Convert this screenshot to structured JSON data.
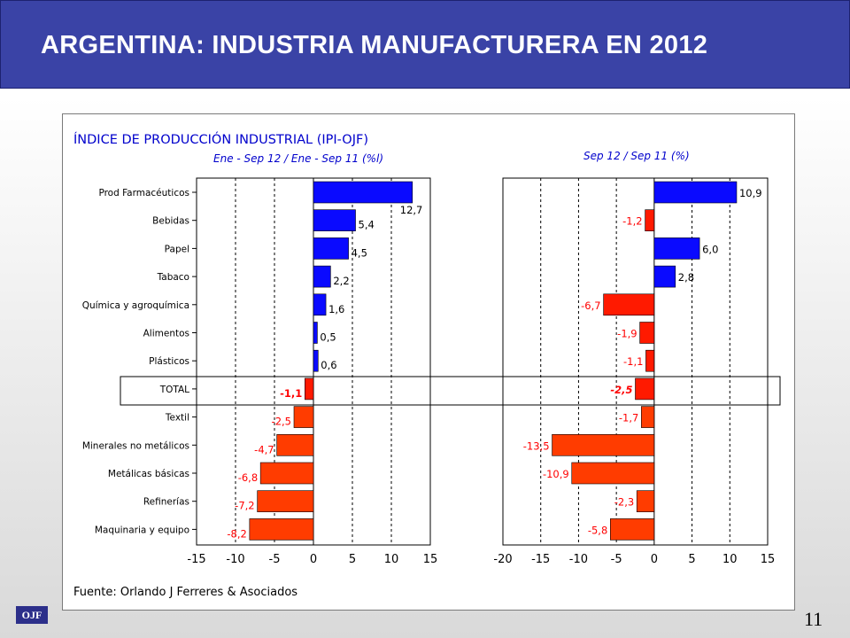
{
  "slide": {
    "title": "ARGENTINA: INDUSTRIA MANUFACTURERA EN 2012",
    "page_number": "11",
    "logo_text": "OJF"
  },
  "panel": {
    "header": "ÍNDICE DE PRODUCCIÓN INDUSTRIAL (IPI-OJF)",
    "source": "Fuente: Orlando J Ferreres & Asociados"
  },
  "colors": {
    "positive": "#0a0aff",
    "negative": "#ff1a00",
    "negative_orange": "#ff3c00",
    "label_negative": "#ff0000",
    "title_bar": "#3a43a6"
  },
  "chart_data": [
    {
      "type": "bar",
      "orientation": "horizontal",
      "subtitle": "Ene - Sep 12 / Ene - Sep 11 (%l)",
      "categories": [
        "Prod Farmacéuticos",
        "Bebidas",
        "Papel",
        "Tabaco",
        "Química  y  agroquímica",
        "Alimentos",
        "Plásticos",
        "TOTAL",
        "Textil",
        "Minerales no metálicos",
        "Metálicas básicas",
        "Refinerías",
        "Maquinaria y equipo"
      ],
      "values": [
        12.7,
        5.4,
        4.5,
        2.2,
        1.6,
        0.5,
        0.6,
        -1.1,
        -2.5,
        -4.7,
        -6.8,
        -7.2,
        -8.2
      ],
      "value_labels": [
        "12,7",
        "5,4",
        "4,5",
        "2,2",
        "1,6",
        "0,5",
        "0,6",
        "-1,1",
        "-2,5",
        "-4,7",
        "-6,8",
        "-7,2",
        "-8,2"
      ],
      "xlim": [
        -15,
        15
      ],
      "ticks": [
        -15,
        -10,
        -5,
        0,
        5,
        10,
        15
      ],
      "highlight_category": "TOTAL",
      "grid": "vertical dashed"
    },
    {
      "type": "bar",
      "orientation": "horizontal",
      "subtitle": "Sep 12 / Sep 11 (%)",
      "categories": [
        "Prod Farmacéuticos",
        "Bebidas",
        "Papel",
        "Tabaco",
        "Química  y  agroquímica",
        "Alimentos",
        "Plásticos",
        "TOTAL",
        "Textil",
        "Minerales no metálicos",
        "Metálicas básicas",
        "Refinerías",
        "Maquinaria y equipo"
      ],
      "values": [
        10.9,
        -1.2,
        6.0,
        2.8,
        -6.7,
        -1.9,
        -1.1,
        -2.5,
        -1.7,
        -13.5,
        -10.9,
        -2.3,
        -5.8
      ],
      "value_labels": [
        "10,9",
        "-1,2",
        "6,0",
        "2,8",
        "-6,7",
        "-1,9",
        "-1,1",
        "-2,5",
        "-1,7",
        "-13,5",
        "-10,9",
        "-2,3",
        "-5,8"
      ],
      "xlim": [
        -20,
        15
      ],
      "ticks": [
        -20,
        -15,
        -10,
        -5,
        0,
        5,
        10,
        15
      ],
      "highlight_category": "TOTAL",
      "grid": "vertical dashed"
    }
  ]
}
